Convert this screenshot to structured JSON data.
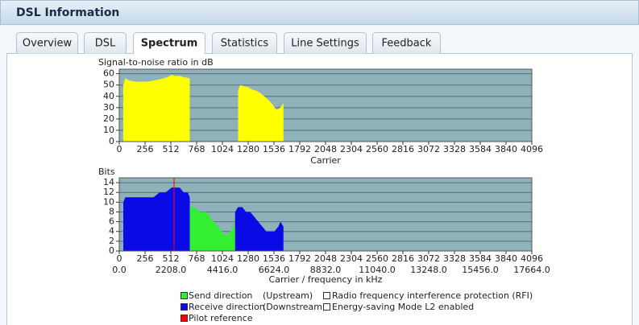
{
  "header": {
    "title": "DSL Information"
  },
  "tabs": [
    "Overview",
    "DSL",
    "Spectrum",
    "Statistics",
    "Line Settings",
    "Feedback"
  ],
  "chart_data": [
    {
      "type": "area",
      "title": "Signal-to-noise ratio in dB",
      "xlabel": "Carrier",
      "xlim": [
        0,
        4096
      ],
      "xticks": [
        0,
        256,
        512,
        768,
        1024,
        1280,
        1536,
        1792,
        2048,
        2304,
        2560,
        2816,
        3072,
        3328,
        3584,
        3840,
        4096
      ],
      "ylim": [
        0,
        64
      ],
      "yticks": [
        0,
        10,
        20,
        30,
        40,
        50,
        60
      ],
      "grid": true,
      "background": "#8fb1b9",
      "series": [
        {
          "color": "#ffff00",
          "x": [
            40,
            60,
            100,
            160,
            220,
            280,
            340,
            400,
            440,
            480,
            520,
            560,
            600,
            640,
            700,
            null,
            1180,
            1200,
            1240,
            1280,
            1320,
            1360,
            1400,
            1440,
            1480,
            1520,
            1560,
            1600,
            1630
          ],
          "values": [
            50,
            56,
            54,
            53,
            53,
            53,
            54,
            55,
            56,
            57,
            59,
            58,
            58,
            57,
            56,
            null,
            45,
            50,
            49,
            48,
            46,
            45,
            43,
            40,
            37,
            33,
            28,
            30,
            34
          ]
        }
      ]
    },
    {
      "type": "area",
      "title": "Bits",
      "xlabel": "Carrier / frequency in kHz",
      "xlim": [
        0,
        4096
      ],
      "xticks": [
        0,
        256,
        512,
        768,
        1024,
        1280,
        1536,
        1792,
        2048,
        2304,
        2560,
        2816,
        3072,
        3328,
        3584,
        3840,
        4096
      ],
      "x2lim": [
        0,
        17664
      ],
      "x2ticks": [
        {
          "value": 0,
          "label": "0.0"
        },
        {
          "value": 2208,
          "label": "2208.0"
        },
        {
          "value": 4416,
          "label": "4416.0"
        },
        {
          "value": 6624,
          "label": "6624.0"
        },
        {
          "value": 8832,
          "label": "8832.0"
        },
        {
          "value": 11040,
          "label": "11040.0"
        },
        {
          "value": 13248,
          "label": "13248.0"
        },
        {
          "value": 15456,
          "label": "15456.0"
        },
        {
          "value": 17664,
          "label": "17664.0"
        }
      ],
      "ylim": [
        0,
        15
      ],
      "yticks": [
        0,
        2,
        4,
        6,
        8,
        10,
        12,
        14
      ],
      "grid": true,
      "background": "#8fb1b9",
      "series": [
        {
          "name": "Send direction",
          "note": "(Upstream)",
          "color": "#33ee33",
          "x": [
            700,
            740,
            800,
            860,
            900,
            940,
            980,
            1020,
            1060,
            1100,
            1140,
            1150
          ],
          "values": [
            9,
            9,
            8,
            8,
            7,
            6,
            5,
            4,
            3,
            4,
            5,
            7
          ]
        },
        {
          "name": "Receive direction",
          "note": "(Downstream)",
          "color": "#0a0ae6",
          "x": [
            40,
            60,
            100,
            160,
            220,
            280,
            340,
            400,
            460,
            520,
            560,
            600,
            640,
            680,
            700,
            null,
            1150,
            1180,
            1220,
            1260,
            1300,
            1340,
            1380,
            1420,
            1460,
            1500,
            1540,
            1580,
            1600,
            1630
          ],
          "values": [
            10,
            11,
            11,
            11,
            11,
            11,
            11,
            12,
            12,
            13,
            13,
            13,
            12,
            12,
            11,
            null,
            8,
            9,
            9,
            8,
            8,
            7,
            6,
            5,
            4,
            4,
            4,
            5,
            6,
            5
          ]
        }
      ],
      "markers": [
        {
          "name": "Pilot reference",
          "color": "#ff0000",
          "x": 544
        }
      ]
    }
  ],
  "options": [
    {
      "label": "Radio frequency interference protection (RFI)",
      "checked": false
    },
    {
      "label": "Energy-saving Mode L2 enabled",
      "checked": false
    }
  ]
}
